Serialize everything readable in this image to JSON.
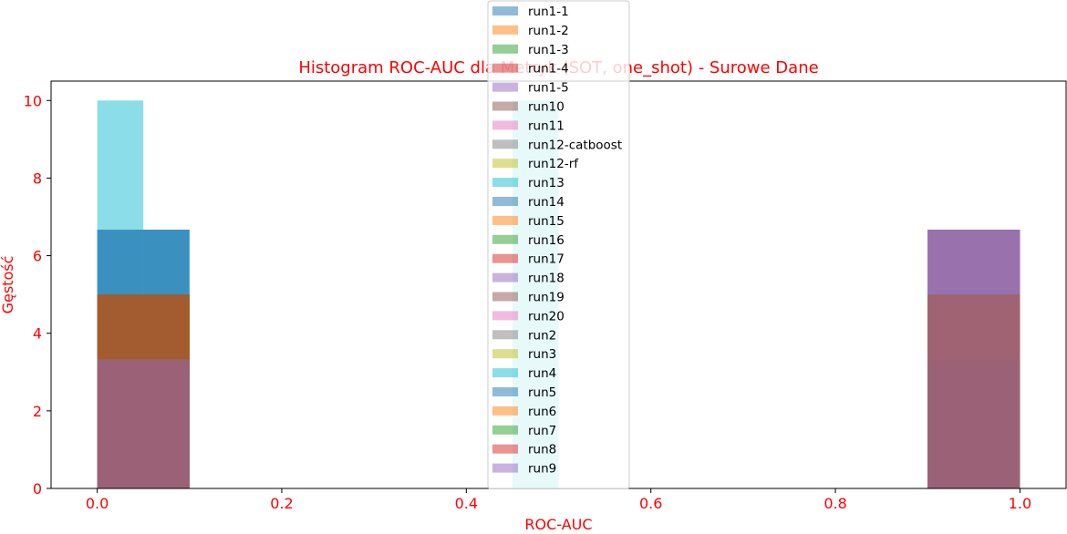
{
  "chart_data": {
    "type": "bar",
    "title": "Histogram ROC-AUC dla Metryk (SOT, one_shot) - Surowe Dane",
    "xlabel": "ROC-AUC",
    "ylabel": "Gęstość",
    "xlim": [
      -0.05,
      1.05
    ],
    "ylim": [
      0,
      10.5
    ],
    "xticks": [
      "0.0",
      "0.2",
      "0.4",
      "0.6",
      "0.8",
      "1.0"
    ],
    "yticks": [
      "0",
      "2",
      "4",
      "6",
      "8",
      "10"
    ],
    "legend_position": "upper center",
    "grid": false,
    "text_color": "#ff0000",
    "series": [
      {
        "name": "run1-1",
        "color": "#1f77b4",
        "bins": [
          {
            "x0": 0.0,
            "x1": 0.1,
            "density": 3.33
          },
          {
            "x0": 0.9,
            "x1": 1.0,
            "density": 6.67
          }
        ]
      },
      {
        "name": "run1-2",
        "color": "#ff7f0e",
        "bins": [
          {
            "x0": 0.0,
            "x1": 0.1,
            "density": 5.0
          },
          {
            "x0": 0.9,
            "x1": 1.0,
            "density": 5.0
          }
        ]
      },
      {
        "name": "run1-3",
        "color": "#2ca02c",
        "bins": [
          {
            "x0": 0.0,
            "x1": 0.1,
            "density": 3.33
          },
          {
            "x0": 0.9,
            "x1": 1.0,
            "density": 6.67
          }
        ]
      },
      {
        "name": "run1-4",
        "color": "#d62728",
        "bins": [
          {
            "x0": 0.0,
            "x1": 0.1,
            "density": 5.0
          },
          {
            "x0": 0.9,
            "x1": 1.0,
            "density": 5.0
          }
        ]
      },
      {
        "name": "run1-5",
        "color": "#9467bd",
        "bins": [
          {
            "x0": 0.0,
            "x1": 0.1,
            "density": 3.33
          },
          {
            "x0": 0.9,
            "x1": 1.0,
            "density": 6.67
          }
        ]
      },
      {
        "name": "run10",
        "color": "#8c564b",
        "bins": [
          {
            "x0": 0.0,
            "x1": 0.1,
            "density": 5.0
          },
          {
            "x0": 0.9,
            "x1": 1.0,
            "density": 5.0
          }
        ]
      },
      {
        "name": "run11",
        "color": "#e377c2",
        "bins": [
          {
            "x0": 0.0,
            "x1": 0.1,
            "density": 3.33
          },
          {
            "x0": 0.9,
            "x1": 1.0,
            "density": 6.67
          }
        ]
      },
      {
        "name": "run12-catboost",
        "color": "#7f7f7f",
        "bins": [
          {
            "x0": 0.0,
            "x1": 0.1,
            "density": 3.33
          },
          {
            "x0": 0.9,
            "x1": 1.0,
            "density": 6.67
          }
        ]
      },
      {
        "name": "run12-rf",
        "color": "#bcbd22",
        "bins": [
          {
            "x0": 0.0,
            "x1": 0.1,
            "density": 5.0
          },
          {
            "x0": 0.9,
            "x1": 1.0,
            "density": 5.0
          }
        ]
      },
      {
        "name": "run13",
        "color": "#17becf",
        "bins": [
          {
            "x0": 0.0,
            "x1": 0.05,
            "density": 10.0
          },
          {
            "x0": 0.05,
            "x1": 0.1,
            "density": 6.67
          }
        ]
      },
      {
        "name": "run14",
        "color": "#1f77b4",
        "bins": [
          {
            "x0": 0.0,
            "x1": 0.1,
            "density": 6.67
          },
          {
            "x0": 0.9,
            "x1": 1.0,
            "density": 3.33
          }
        ]
      },
      {
        "name": "run15",
        "color": "#ff7f0e",
        "bins": [
          {
            "x0": 0.0,
            "x1": 0.1,
            "density": 5.0
          },
          {
            "x0": 0.9,
            "x1": 1.0,
            "density": 5.0
          }
        ]
      },
      {
        "name": "run16",
        "color": "#2ca02c",
        "bins": [
          {
            "x0": 0.0,
            "x1": 0.1,
            "density": 5.0
          },
          {
            "x0": 0.9,
            "x1": 1.0,
            "density": 5.0
          }
        ]
      },
      {
        "name": "run17",
        "color": "#d62728",
        "bins": [
          {
            "x0": 0.0,
            "x1": 0.1,
            "density": 5.0
          },
          {
            "x0": 0.9,
            "x1": 1.0,
            "density": 5.0
          }
        ]
      },
      {
        "name": "run18",
        "color": "#9467bd",
        "bins": [
          {
            "x0": 0.0,
            "x1": 0.1,
            "density": 3.33
          },
          {
            "x0": 0.9,
            "x1": 1.0,
            "density": 6.67
          }
        ]
      },
      {
        "name": "run19",
        "color": "#8c564b",
        "bins": [
          {
            "x0": 0.0,
            "x1": 0.1,
            "density": 5.0
          },
          {
            "x0": 0.9,
            "x1": 1.0,
            "density": 5.0
          }
        ]
      },
      {
        "name": "run20",
        "color": "#e377c2",
        "bins": [
          {
            "x0": 0.0,
            "x1": 0.1,
            "density": 3.33
          },
          {
            "x0": 0.9,
            "x1": 1.0,
            "density": 6.67
          }
        ]
      },
      {
        "name": "run2",
        "color": "#7f7f7f",
        "bins": [
          {
            "x0": 0.0,
            "x1": 0.1,
            "density": 3.33
          },
          {
            "x0": 0.9,
            "x1": 1.0,
            "density": 6.67
          }
        ]
      },
      {
        "name": "run3",
        "color": "#bcbd22",
        "bins": [
          {
            "x0": 0.0,
            "x1": 0.1,
            "density": 5.0
          },
          {
            "x0": 0.9,
            "x1": 1.0,
            "density": 5.0
          }
        ]
      },
      {
        "name": "run4",
        "color": "#17becf",
        "bins": [
          {
            "x0": 0.45,
            "x1": 0.5,
            "density": 10.0
          }
        ]
      },
      {
        "name": "run5",
        "color": "#1f77b4",
        "bins": [
          {
            "x0": 0.0,
            "x1": 0.1,
            "density": 6.67
          },
          {
            "x0": 0.9,
            "x1": 1.0,
            "density": 3.33
          }
        ]
      },
      {
        "name": "run6",
        "color": "#ff7f0e",
        "bins": [
          {
            "x0": 0.0,
            "x1": 0.1,
            "density": 5.0
          },
          {
            "x0": 0.9,
            "x1": 1.0,
            "density": 5.0
          }
        ]
      },
      {
        "name": "run7",
        "color": "#2ca02c",
        "bins": [
          {
            "x0": 0.0,
            "x1": 0.1,
            "density": 5.0
          },
          {
            "x0": 0.9,
            "x1": 1.0,
            "density": 5.0
          }
        ]
      },
      {
        "name": "run8",
        "color": "#d62728",
        "bins": [
          {
            "x0": 0.0,
            "x1": 0.1,
            "density": 5.0
          },
          {
            "x0": 0.9,
            "x1": 1.0,
            "density": 5.0
          }
        ]
      },
      {
        "name": "run9",
        "color": "#9467bd",
        "bins": [
          {
            "x0": 0.0,
            "x1": 0.1,
            "density": 3.33
          },
          {
            "x0": 0.9,
            "x1": 1.0,
            "density": 6.67
          }
        ]
      }
    ]
  }
}
